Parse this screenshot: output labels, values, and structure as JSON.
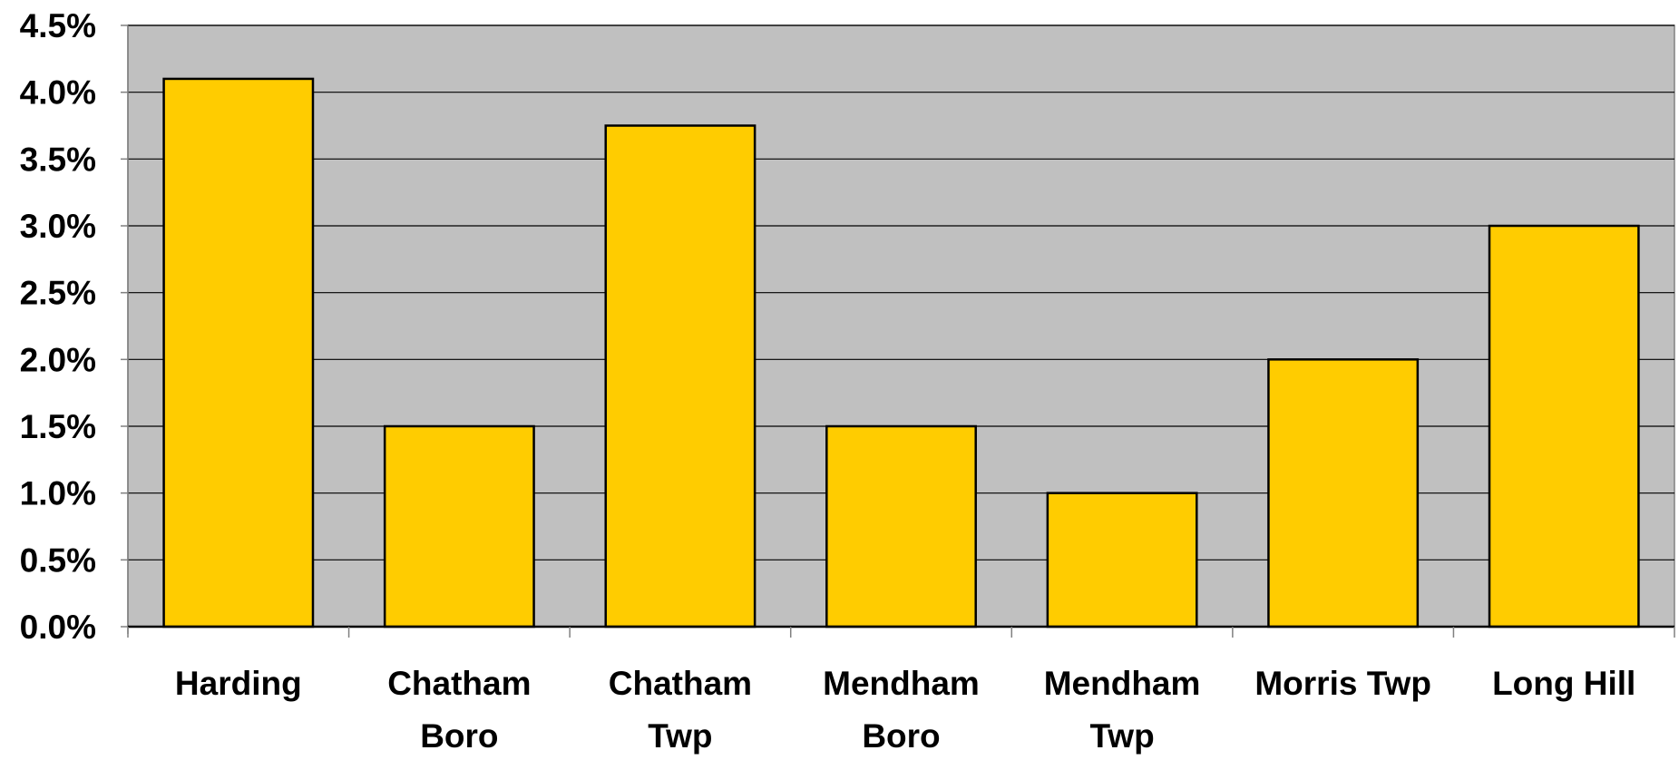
{
  "chart_data": {
    "type": "bar",
    "title": "",
    "xlabel": "",
    "ylabel": "",
    "categories": [
      [
        "Harding"
      ],
      [
        "Chatham",
        "Boro"
      ],
      [
        "Chatham",
        "Twp"
      ],
      [
        "Mendham",
        "Boro"
      ],
      [
        "Mendham",
        "Twp"
      ],
      [
        "Morris Twp"
      ],
      [
        "Long Hill"
      ]
    ],
    "values": [
      4.1,
      1.5,
      3.75,
      1.5,
      1.0,
      2.0,
      3.0
    ],
    "ylim": [
      0,
      4.5
    ],
    "yticks": [
      0,
      0.5,
      1.0,
      1.5,
      2.0,
      2.5,
      3.0,
      3.5,
      4.0,
      4.5
    ],
    "ytick_labels": [
      "0.0%",
      "0.5%",
      "1.0%",
      "1.5%",
      "2.0%",
      "2.5%",
      "3.0%",
      "3.5%",
      "4.0%",
      "4.5%"
    ],
    "grid": true,
    "legend": "none"
  },
  "colors": {
    "bar_fill": "#FFCC00",
    "bar_stroke": "#000000",
    "plot_background": "#C0C0C0",
    "gridline": "#000000",
    "axis": "#808080"
  }
}
